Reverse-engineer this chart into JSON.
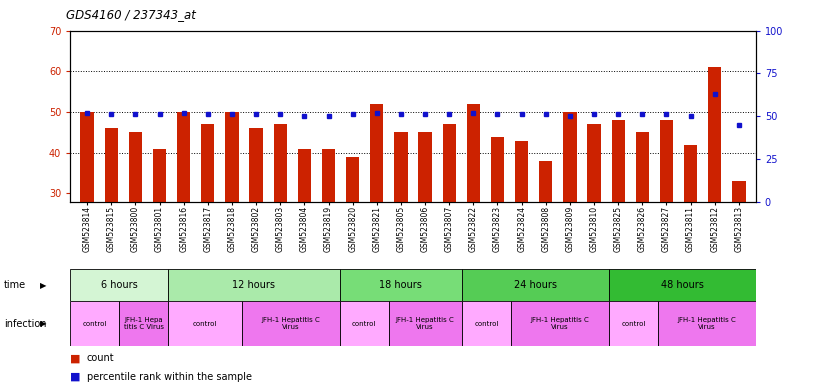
{
  "title": "GDS4160 / 237343_at",
  "samples": [
    "GSM523814",
    "GSM523815",
    "GSM523800",
    "GSM523801",
    "GSM523816",
    "GSM523817",
    "GSM523818",
    "GSM523802",
    "GSM523803",
    "GSM523804",
    "GSM523819",
    "GSM523820",
    "GSM523821",
    "GSM523805",
    "GSM523806",
    "GSM523807",
    "GSM523822",
    "GSM523823",
    "GSM523824",
    "GSM523808",
    "GSM523809",
    "GSM523810",
    "GSM523825",
    "GSM523826",
    "GSM523827",
    "GSM523811",
    "GSM523812",
    "GSM523813"
  ],
  "counts": [
    50,
    46,
    45,
    41,
    50,
    47,
    50,
    46,
    47,
    41,
    41,
    39,
    52,
    45,
    45,
    47,
    52,
    44,
    43,
    38,
    50,
    47,
    48,
    45,
    48,
    42,
    61,
    33
  ],
  "percentile_ranks": [
    52,
    51,
    51,
    51,
    52,
    51,
    51,
    51,
    51,
    50,
    50,
    51,
    52,
    51,
    51,
    51,
    52,
    51,
    51,
    51,
    50,
    51,
    51,
    51,
    51,
    50,
    63,
    45
  ],
  "time_groups": [
    {
      "label": "6 hours",
      "start": 0,
      "end": 4,
      "color": "#d4f5d4"
    },
    {
      "label": "12 hours",
      "start": 4,
      "end": 11,
      "color": "#aaeaaa"
    },
    {
      "label": "18 hours",
      "start": 11,
      "end": 16,
      "color": "#77dd77"
    },
    {
      "label": "24 hours",
      "start": 16,
      "end": 22,
      "color": "#55cc55"
    },
    {
      "label": "48 hours",
      "start": 22,
      "end": 28,
      "color": "#33bb33"
    }
  ],
  "infection_groups": [
    {
      "label": "control",
      "start": 0,
      "end": 2,
      "color": "#ffaaff"
    },
    {
      "label": "JFH-1 Hepa\ntitis C Virus",
      "start": 2,
      "end": 4,
      "color": "#ee77ee"
    },
    {
      "label": "control",
      "start": 4,
      "end": 7,
      "color": "#ffaaff"
    },
    {
      "label": "JFH-1 Hepatitis C\nVirus",
      "start": 7,
      "end": 11,
      "color": "#ee77ee"
    },
    {
      "label": "control",
      "start": 11,
      "end": 13,
      "color": "#ffaaff"
    },
    {
      "label": "JFH-1 Hepatitis C\nVirus",
      "start": 13,
      "end": 16,
      "color": "#ee77ee"
    },
    {
      "label": "control",
      "start": 16,
      "end": 18,
      "color": "#ffaaff"
    },
    {
      "label": "JFH-1 Hepatitis C\nVirus",
      "start": 18,
      "end": 22,
      "color": "#ee77ee"
    },
    {
      "label": "control",
      "start": 22,
      "end": 24,
      "color": "#ffaaff"
    },
    {
      "label": "JFH-1 Hepatitis C\nVirus",
      "start": 24,
      "end": 28,
      "color": "#ee77ee"
    }
  ],
  "ylim_left": [
    28,
    70
  ],
  "ylim_right": [
    0,
    100
  ],
  "yticks_left": [
    30,
    40,
    50,
    60,
    70
  ],
  "yticks_right": [
    0,
    25,
    50,
    75,
    100
  ],
  "bar_color": "#cc2200",
  "dot_color": "#1111cc",
  "left_axis_color": "#cc2200",
  "right_axis_color": "#1111cc"
}
